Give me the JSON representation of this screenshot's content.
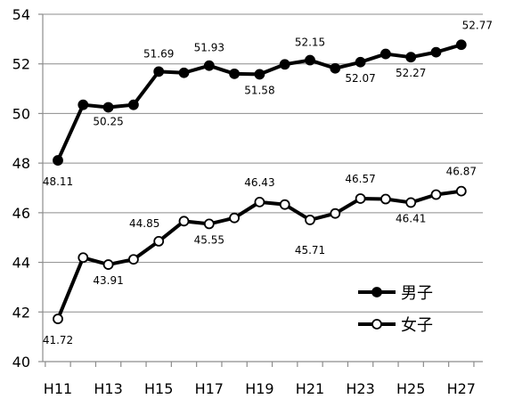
{
  "chart_data": {
    "type": "line",
    "x": [
      "H11",
      "H12",
      "H13",
      "H14",
      "H15",
      "H16",
      "H17",
      "H18",
      "H19",
      "H20",
      "H21",
      "H22",
      "H23",
      "H24",
      "H25",
      "H26",
      "H27"
    ],
    "xtick_labels": [
      "H11",
      "H13",
      "H15",
      "H17",
      "H19",
      "H21",
      "H23",
      "H25",
      "H27"
    ],
    "ylim": [
      40,
      54
    ],
    "yticks": [
      40,
      42,
      44,
      46,
      48,
      50,
      52,
      54
    ],
    "grid": true,
    "legend_position": "bottom-right",
    "title": "",
    "xlabel": "",
    "ylabel": "",
    "series": [
      {
        "name": "男子",
        "marker": "filled-circle",
        "color": "#000000",
        "values": [
          48.11,
          50.35,
          50.25,
          50.35,
          51.69,
          51.64,
          51.93,
          51.6,
          51.58,
          51.98,
          52.15,
          51.82,
          52.07,
          52.4,
          52.27,
          52.47,
          52.77
        ],
        "labels": {
          "0": "48.11",
          "2": "50.25",
          "4": "51.69",
          "6": "51.93",
          "8": "51.58",
          "10": "52.15",
          "12": "52.07",
          "14": "52.27",
          "16": "52.77"
        }
      },
      {
        "name": "女子",
        "marker": "open-circle",
        "color": "#000000",
        "values": [
          41.72,
          44.19,
          43.91,
          44.12,
          44.85,
          45.66,
          45.55,
          45.79,
          46.43,
          46.33,
          45.71,
          45.97,
          46.57,
          46.55,
          46.41,
          46.73,
          46.87
        ],
        "labels": {
          "0": "41.72",
          "2": "43.91",
          "4": "44.85",
          "6": "45.55",
          "8": "46.43",
          "10": "45.71",
          "12": "46.57",
          "14": "46.41",
          "16": "46.87"
        }
      }
    ]
  }
}
